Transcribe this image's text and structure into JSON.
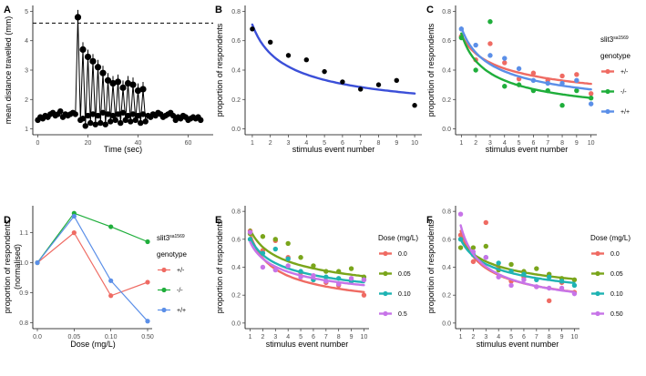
{
  "chart_data": [
    {
      "panel": "A",
      "type": "line",
      "xlabel": "Time (sec)",
      "ylabel": "mean distance travelled (mm)",
      "xlim": [
        -2,
        70
      ],
      "ylim": [
        0.8,
        5.2
      ],
      "xticks": [
        0,
        20,
        40,
        60
      ],
      "yticks": [
        1,
        2,
        3,
        4,
        5
      ],
      "reference_line": 4.6,
      "series": [
        {
          "x": [
            0,
            1,
            2,
            3,
            4,
            5,
            6,
            7,
            8,
            9,
            10,
            11,
            12,
            13,
            14,
            15,
            16,
            17,
            18,
            19,
            20,
            21,
            22,
            23,
            24,
            25,
            26,
            27,
            28,
            29,
            30,
            31,
            32,
            33,
            34,
            35,
            36,
            37,
            38,
            39,
            40,
            41,
            42,
            43,
            44,
            45,
            46,
            47,
            48,
            49,
            50,
            51,
            52,
            53,
            54,
            55,
            56,
            57,
            58,
            59,
            60,
            61,
            62,
            63,
            64,
            65
          ],
          "y": [
            1.3,
            1.4,
            1.35,
            1.45,
            1.4,
            1.5,
            1.55,
            1.45,
            1.5,
            1.6,
            1.4,
            1.5,
            1.45,
            1.5,
            1.55,
            1.5,
            4.8,
            1.3,
            3.7,
            1.1,
            3.45,
            1.2,
            3.3,
            1.15,
            3.1,
            1.2,
            2.9,
            1.15,
            2.65,
            1.25,
            2.55,
            1.3,
            2.6,
            1.2,
            2.4,
            1.3,
            2.55,
            1.25,
            2.5,
            1.3,
            2.3,
            1.2,
            2.35,
            1.25,
            1.45,
            1.4,
            1.5,
            1.45,
            1.55,
            1.5,
            1.4,
            1.45,
            1.5,
            1.55,
            1.45,
            1.3,
            1.4,
            1.35,
            1.45,
            1.4,
            1.3,
            1.35,
            1.4,
            1.35,
            1.4,
            1.3
          ],
          "y2": [
            null,
            null,
            null,
            null,
            null,
            null,
            null,
            null,
            null,
            null,
            null,
            null,
            null,
            null,
            null,
            null,
            null,
            null,
            1.35,
            null,
            1.45,
            null,
            1.5,
            null,
            1.45,
            null,
            1.55,
            null,
            1.5,
            null,
            1.45,
            null,
            1.5,
            null,
            1.55,
            null,
            1.45,
            null,
            1.5,
            null,
            1.45,
            null,
            1.5,
            null,
            null,
            null,
            null,
            null,
            null,
            null,
            null,
            null,
            null,
            null,
            null,
            null,
            null,
            null,
            null,
            null,
            null,
            null,
            null,
            null,
            null,
            null
          ]
        }
      ]
    },
    {
      "panel": "B",
      "type": "scatter",
      "xlabel": "stimulus event number",
      "ylabel": "proportion of respondents",
      "xlim": [
        0.6,
        10.4
      ],
      "ylim": [
        -0.04,
        0.84
      ],
      "xticks": [
        1,
        2,
        3,
        4,
        5,
        6,
        7,
        8,
        9,
        10
      ],
      "yticks": [
        0.0,
        0.2,
        0.4,
        0.6,
        0.8
      ],
      "series": [
        {
          "x": [
            1,
            2,
            3,
            4,
            5,
            6,
            7,
            8,
            9,
            10
          ],
          "y": [
            0.68,
            0.59,
            0.5,
            0.47,
            0.39,
            0.32,
            0.27,
            0.3,
            0.33,
            0.16
          ],
          "color": "#000000",
          "fit": {
            "a": 0.71,
            "b": 0.47,
            "color": "#3b4fd8"
          }
        }
      ]
    },
    {
      "panel": "C",
      "type": "scatter",
      "xlabel": "stimulus event number",
      "ylabel": "proportion of respondents",
      "xlim": [
        0.6,
        10.4
      ],
      "ylim": [
        -0.04,
        0.84
      ],
      "xticks": [
        1,
        2,
        3,
        4,
        5,
        6,
        7,
        8,
        9,
        10
      ],
      "yticks": [
        0.0,
        0.2,
        0.4,
        0.6,
        0.8
      ],
      "legend": {
        "title_main": "slit3",
        "title_sup": "sa1569",
        "subtitle": "genotype",
        "position": "right"
      },
      "series": [
        {
          "name": "+/-",
          "color": "#ef6b63",
          "x": [
            1,
            2,
            3,
            4,
            5,
            6,
            7,
            8,
            9,
            10
          ],
          "y": [
            0.63,
            0.47,
            0.58,
            0.45,
            0.34,
            0.38,
            0.33,
            0.36,
            0.37,
            0.24
          ],
          "fit": {
            "a": 0.64,
            "b": 0.32
          }
        },
        {
          "name": "-/-",
          "color": "#1fae3b",
          "x": [
            1,
            2,
            3,
            4,
            5,
            6,
            7,
            8,
            9,
            10
          ],
          "y": [
            0.62,
            0.4,
            0.73,
            0.29,
            0.3,
            0.26,
            0.26,
            0.16,
            0.26,
            0.21
          ],
          "fit": {
            "a": 0.65,
            "b": 0.49
          }
        },
        {
          "name": "+/+",
          "color": "#5b8fe8",
          "x": [
            1,
            2,
            3,
            4,
            5,
            6,
            7,
            8,
            9,
            10
          ],
          "y": [
            0.68,
            0.57,
            0.5,
            0.48,
            0.41,
            0.33,
            0.31,
            0.31,
            0.33,
            0.17
          ],
          "fit": {
            "a": 0.69,
            "b": 0.41
          }
        }
      ]
    },
    {
      "panel": "D",
      "type": "line",
      "xlabel": "Dose (mg/L)",
      "ylabel": "proportion of respondents",
      "ylabel2": "(normalised)",
      "categories": [
        "0.0",
        "0.05",
        "0.10",
        "0.50"
      ],
      "ylim": [
        0.78,
        1.19
      ],
      "yticks": [
        0.8,
        0.9,
        1.0,
        1.1
      ],
      "ytick_labels": [
        "0.8",
        "0.9",
        "1.0",
        "1.1"
      ],
      "legend": {
        "title_main": "slit3",
        "title_sup": "sa1569",
        "subtitle": "genotype",
        "position": "right"
      },
      "series": [
        {
          "name": "+/-",
          "color": "#ef6b63",
          "values": [
            1.0,
            1.1,
            0.89,
            0.935
          ]
        },
        {
          "name": "-/-",
          "color": "#1fae3b",
          "values": [
            1.0,
            1.165,
            1.12,
            1.07
          ]
        },
        {
          "name": "+/+",
          "color": "#5b8fe8",
          "values": [
            1.0,
            1.155,
            0.94,
            0.805
          ]
        }
      ]
    },
    {
      "panel": "E",
      "type": "scatter",
      "xlabel": "stimulus event number",
      "ylabel": "proportion of respondents",
      "xlim": [
        0.6,
        10.4
      ],
      "ylim": [
        -0.04,
        0.84
      ],
      "xticks": [
        1,
        2,
        3,
        4,
        5,
        6,
        7,
        8,
        9,
        10
      ],
      "yticks": [
        0.0,
        0.2,
        0.4,
        0.6,
        0.8
      ],
      "legend": {
        "title": "Dose (mg/L)",
        "position": "right"
      },
      "series": [
        {
          "name": "0.0",
          "color": "#ef6b63",
          "x": [
            1,
            2,
            3,
            4,
            5,
            6,
            7,
            8,
            9,
            10
          ],
          "y": [
            0.66,
            0.52,
            0.59,
            0.47,
            0.36,
            0.31,
            0.29,
            0.27,
            0.3,
            0.2
          ],
          "fit": {
            "a": 0.64,
            "b": 0.46
          }
        },
        {
          "name": "0.05",
          "color": "#7aa51b",
          "x": [
            1,
            2,
            3,
            4,
            5,
            6,
            7,
            8,
            9,
            10
          ],
          "y": [
            0.64,
            0.62,
            0.6,
            0.57,
            0.47,
            0.41,
            0.37,
            0.37,
            0.39,
            0.33
          ],
          "fit": {
            "a": 0.67,
            "b": 0.3
          }
        },
        {
          "name": "0.10",
          "color": "#1fb3b3",
          "x": [
            1,
            2,
            3,
            4,
            5,
            6,
            7,
            8,
            9,
            10
          ],
          "y": [
            0.6,
            0.5,
            0.53,
            0.46,
            0.37,
            0.31,
            0.33,
            0.32,
            0.3,
            0.31
          ],
          "fit": {
            "a": 0.61,
            "b": 0.32
          }
        },
        {
          "name": "0.5",
          "color": "#c774e8",
          "x": [
            1,
            2,
            3,
            4,
            5,
            6,
            7,
            8,
            9,
            10
          ],
          "y": [
            0.65,
            0.4,
            0.38,
            0.41,
            0.33,
            0.34,
            0.3,
            0.28,
            0.32,
            0.31
          ],
          "fit": {
            "a": 0.58,
            "b": 0.33
          }
        }
      ]
    },
    {
      "panel": "F",
      "type": "scatter",
      "xlabel": "stimulus event number",
      "ylabel": "proportion of respondents",
      "xlim": [
        0.6,
        10.4
      ],
      "ylim": [
        -0.04,
        0.84
      ],
      "xticks": [
        1,
        2,
        3,
        4,
        5,
        6,
        7,
        8,
        9,
        10
      ],
      "yticks": [
        0.0,
        0.2,
        0.4,
        0.6,
        0.8
      ],
      "legend": {
        "title": "Dose (mg/L)",
        "position": "right"
      },
      "series": [
        {
          "name": "0.0",
          "color": "#ef6b63",
          "x": [
            1,
            2,
            3,
            4,
            5,
            6,
            7,
            8,
            9,
            10
          ],
          "y": [
            0.63,
            0.44,
            0.72,
            0.4,
            0.3,
            0.33,
            0.26,
            0.16,
            0.29,
            0.22
          ],
          "fit": {
            "a": 0.66,
            "b": 0.47
          }
        },
        {
          "name": "0.05",
          "color": "#7aa51b",
          "x": [
            1,
            2,
            3,
            4,
            5,
            6,
            7,
            8,
            9,
            10
          ],
          "y": [
            0.54,
            0.54,
            0.55,
            0.38,
            0.42,
            0.37,
            0.39,
            0.35,
            0.32,
            0.31
          ],
          "fit": {
            "a": 0.6,
            "b": 0.28
          }
        },
        {
          "name": "0.10",
          "color": "#1fb3b3",
          "x": [
            1,
            2,
            3,
            4,
            5,
            6,
            7,
            8,
            9,
            10
          ],
          "y": [
            0.6,
            0.49,
            0.47,
            0.43,
            0.37,
            0.35,
            0.31,
            0.33,
            0.3,
            0.27
          ],
          "fit": {
            "a": 0.6,
            "b": 0.32
          }
        },
        {
          "name": "0.50",
          "color": "#c774e8",
          "x": [
            1,
            2,
            3,
            4,
            5,
            6,
            7,
            8,
            9,
            10
          ],
          "y": [
            0.78,
            0.51,
            0.47,
            0.33,
            0.27,
            0.31,
            0.26,
            0.25,
            0.25,
            0.21
          ],
          "fit": {
            "a": 0.7,
            "b": 0.5
          }
        }
      ]
    }
  ]
}
